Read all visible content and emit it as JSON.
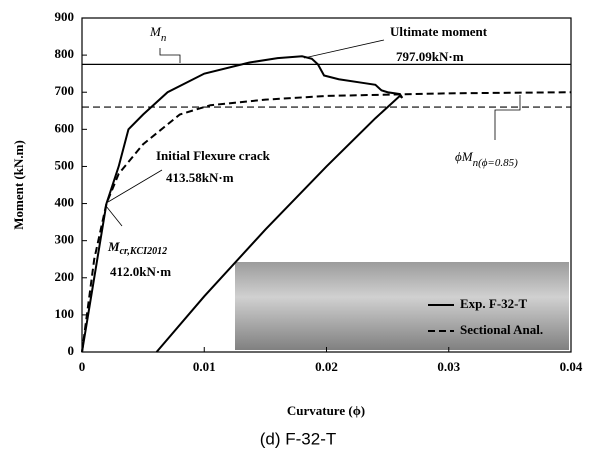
{
  "chart_data": {
    "type": "line",
    "caption": "(d) F-32-T",
    "x_label": "Curvature (ϕ)",
    "y_label": "Moment (kN.m)",
    "xlim": [
      0,
      0.04
    ],
    "xticks": [
      0,
      0.01,
      0.02,
      0.03,
      0.04
    ],
    "ylim": [
      0,
      900
    ],
    "yticks": [
      0,
      100,
      200,
      300,
      400,
      500,
      600,
      700,
      800,
      900
    ],
    "legend_position": "lower right",
    "series": [
      {
        "name": "Exp. F-32-T",
        "color": "#000000",
        "style": "solid",
        "x": [
          0,
          0.001,
          0.002,
          0.003,
          0.0038,
          0.005,
          0.007,
          0.01,
          0.0137,
          0.016,
          0.018,
          0.0188,
          0.0193,
          0.0198,
          0.021,
          0.023,
          0.024,
          0.0245,
          0.025,
          0.026,
          0.0262,
          0.026,
          0.024,
          0.02,
          0.015,
          0.01,
          0.0061
        ],
        "values": [
          0,
          200,
          400,
          500,
          600,
          640,
          700,
          750,
          780,
          792,
          797,
          790,
          775,
          745,
          735,
          725,
          720,
          705,
          700,
          695,
          685,
          690,
          630,
          500,
          330,
          150,
          0
        ]
      },
      {
        "name": "Sectional Anal.",
        "color": "#000000",
        "style": "dashed",
        "x": [
          0,
          0.001,
          0.002,
          0.003,
          0.005,
          0.008,
          0.0105,
          0.015,
          0.02,
          0.03,
          0.04
        ],
        "values": [
          0,
          250,
          400,
          480,
          560,
          640,
          665,
          680,
          690,
          697,
          700
        ]
      }
    ],
    "reference_lines": [
      {
        "value": 775,
        "style": "solid",
        "label": "M",
        "sub": "n"
      },
      {
        "value": 660,
        "style": "dashed",
        "label": "ϕM",
        "sub": "n(ϕ=0.85)"
      }
    ],
    "annotations": [
      {
        "title": "Ultimate moment",
        "value": "797.09kN·m"
      },
      {
        "title": "Initial Flexure crack",
        "value": "413.58kN·m"
      },
      {
        "title": "M",
        "sub": "cr,KCI2012",
        "value": "412.0kN·m"
      }
    ]
  }
}
